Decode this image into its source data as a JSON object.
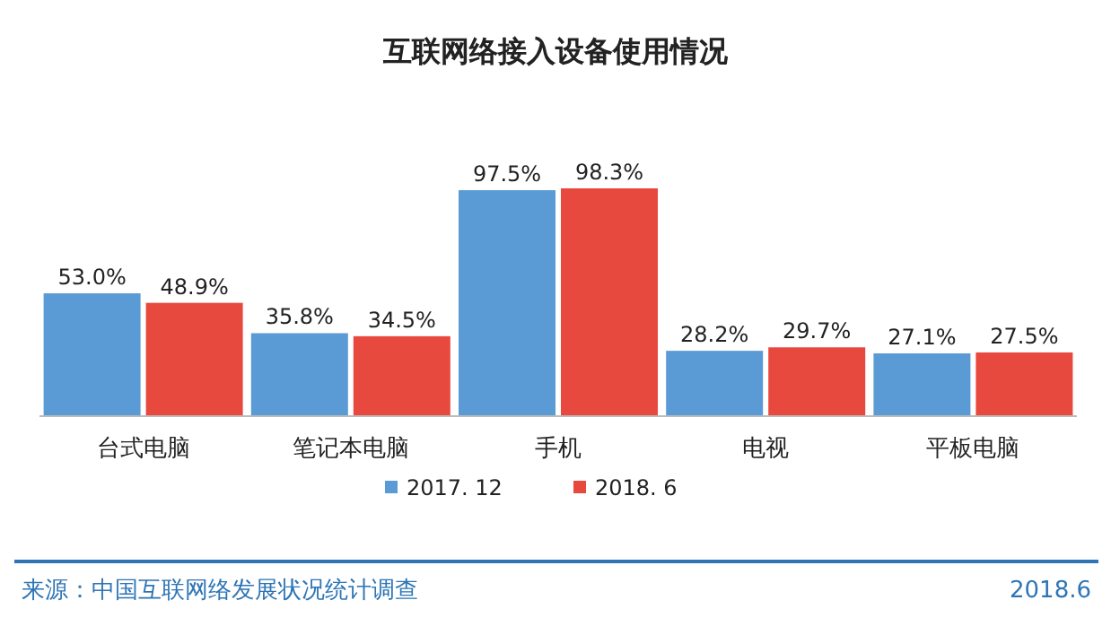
{
  "chart_data": {
    "type": "bar",
    "title": "互联网络接入设备使用情况",
    "categories": [
      "台式电脑",
      "笔记本电脑",
      "手机",
      "电视",
      "平板电脑"
    ],
    "series": [
      {
        "name": "2017. 12",
        "color": "#5b9bd5",
        "values": [
          53.0,
          35.8,
          97.5,
          28.2,
          27.1
        ],
        "value_labels": [
          "53.0%",
          "35.8%",
          "97.5%",
          "28.2%",
          "27.1%"
        ]
      },
      {
        "name": "2018. 6",
        "color": "#e8493f",
        "values": [
          48.9,
          34.5,
          98.3,
          29.7,
          27.5
        ],
        "value_labels": [
          "48.9%",
          "34.5%",
          "98.3%",
          "29.7%",
          "27.5%"
        ]
      }
    ],
    "legend": "bottom",
    "annotations": [
      "来源：中国互联网络发展状况统计调查",
      "2018.6"
    ]
  }
}
